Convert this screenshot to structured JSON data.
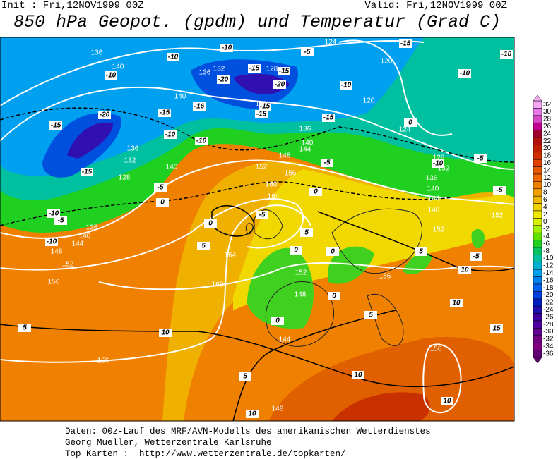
{
  "header": {
    "init": "Init : Fri,12NOV1999 00Z",
    "valid": "Valid: Fri,12NOV1999 00Z",
    "title": "850 hPa Geopot. (gpdm) und Temperatur (Grad C)"
  },
  "colorbar": {
    "labels": [
      32,
      30,
      28,
      26,
      24,
      22,
      20,
      18,
      16,
      14,
      12,
      10,
      8,
      6,
      4,
      2,
      0,
      -2,
      -4,
      -6,
      -8,
      -10,
      -12,
      -14,
      -16,
      -18,
      -20,
      -22,
      -24,
      -26,
      -28,
      -30,
      -32,
      -34,
      -36
    ],
    "colors": [
      "#f4a8f4",
      "#e878e8",
      "#d848c8",
      "#c00090",
      "#a00030",
      "#b01010",
      "#c02000",
      "#d03000",
      "#e04000",
      "#e85800",
      "#f06800",
      "#f08000",
      "#f0a000",
      "#f0b800",
      "#f0d000",
      "#f0e800",
      "#d8f000",
      "#a0f000",
      "#60e000",
      "#20d020",
      "#00c060",
      "#00c0a0",
      "#00b0d0",
      "#00a0f0",
      "#0080f0",
      "#0060f0",
      "#0040e0",
      "#0020c0",
      "#2010b0",
      "#4000a0",
      "#5000a0",
      "#600090",
      "#700080",
      "#800080",
      "#600070"
    ]
  },
  "height_labels": [
    136,
    140,
    136,
    132,
    128,
    124,
    120,
    120,
    124,
    140,
    132,
    136,
    144,
    148,
    140,
    152,
    156,
    160,
    164,
    136,
    132,
    128,
    140,
    136,
    140,
    144,
    148,
    152,
    156,
    164,
    160,
    152,
    148,
    156,
    144,
    156,
    156,
    148,
    128,
    132,
    136,
    140,
    144,
    148,
    152,
    152
  ],
  "temperature_labels": [
    -10,
    -10,
    -10,
    -15,
    -15,
    -20,
    -20,
    -16,
    -15,
    -15,
    -15,
    -10,
    -10,
    -20,
    -15,
    -15,
    -10,
    -10,
    -5,
    -5,
    -15,
    -10,
    -10,
    -10,
    -15,
    -10,
    -5,
    -5,
    -5,
    0,
    5,
    5,
    5,
    5,
    5,
    10,
    10,
    10,
    10,
    15,
    10,
    10,
    5,
    0,
    0,
    0,
    0,
    0,
    -5,
    -5,
    -5,
    0,
    0
  ],
  "footer": [
    "Daten: 00z-Lauf des MRF/AVN-Modells des amerikanischen Wetterdienstes",
    "Georg Mueller, Wetterzentrale Karlsruhe",
    "Top Karten :  http://www.wetterzentrale.de/topkarten/"
  ]
}
